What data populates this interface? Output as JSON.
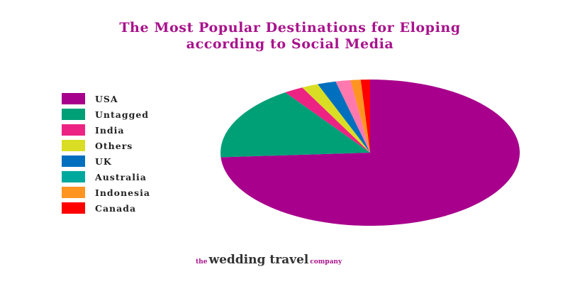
{
  "chart_data": {
    "type": "pie",
    "title": "The Most Popular Destinations for Eloping according to Social Media",
    "title_lines": [
      "The Most Popular Destinations for Eloping",
      "according to Social Media"
    ],
    "legend_position": "left",
    "slices": [
      {
        "label": "USA",
        "value": 74.0,
        "color": "#A8008C"
      },
      {
        "label": "Untagged",
        "value": 16.4,
        "color": "#00A077"
      },
      {
        "label": "India",
        "value": 2.1,
        "color": "#EC2383"
      },
      {
        "label": "Others",
        "value": 1.8,
        "color": "#D9DE24"
      },
      {
        "label": "UK",
        "value": 2.0,
        "color": "#0070BE"
      },
      {
        "label": "Australia",
        "value": 1.6,
        "color": "#00A99D",
        "pie_color": "#FF79AE"
      },
      {
        "label": "Indonesia",
        "value": 1.1,
        "color": "#FF9421"
      },
      {
        "label": "Canada",
        "value": 1.0,
        "color": "#FF0000"
      }
    ]
  },
  "logo": {
    "prefix": "the",
    "main": "wedding travel",
    "suffix": "company"
  }
}
